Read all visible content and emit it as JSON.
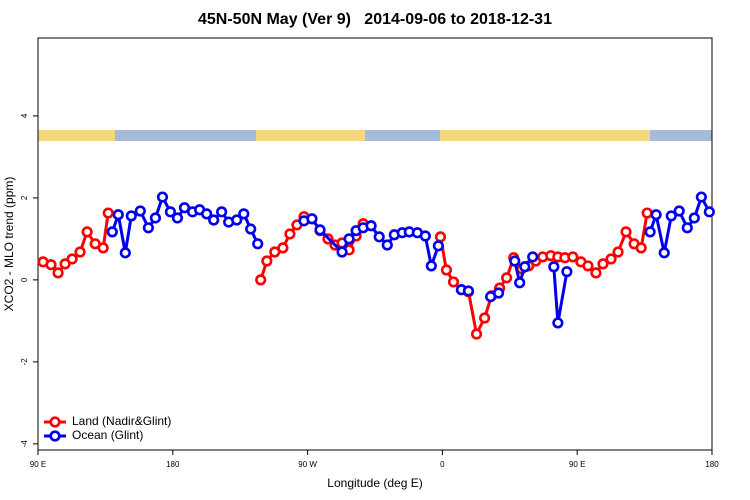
{
  "chart_data": {
    "type": "line",
    "title": "45N-50N May (Ver 9)   2014-09-06 to 2018-12-31",
    "xlabel": "Longitude (deg E)",
    "ylabel": "XCO2 - MLO trend (ppm)",
    "xlim": [
      90,
      540
    ],
    "ylim": [
      -4.15,
      5.9
    ],
    "xticks": [
      {
        "value": 90,
        "label": "90 E"
      },
      180,
      {
        "value": 270,
        "label": "90 W"
      },
      {
        "value": 360,
        "label": "0"
      },
      {
        "value": 450,
        "label": "90 E"
      },
      {
        "value": 540,
        "label": "180"
      }
    ],
    "yticks": [
      -4,
      -2,
      0,
      2,
      4
    ],
    "legend": "lower left",
    "series": [
      {
        "name": "Land (Nadir&Glint)",
        "color": "#ff0000",
        "x": [
          93.4,
          98.7,
          103.4,
          108.1,
          112.8,
          118.1,
          122.8,
          128.2,
          133.5,
          136.9,
          190,
          238.7,
          242.8,
          248.1,
          253.5,
          258.2,
          262.9,
          267.6,
          272.9,
          278.3,
          283.6,
          288.3,
          293,
          297.7,
          302.4,
          307.1,
          330,
          358.7,
          362.7,
          367.4,
          372.7,
          377.4,
          382.8,
          388.2,
          392.8,
          398.2,
          402.9,
          407.6,
          412.9,
          417.6,
          422.3,
          427,
          432.4,
          437.1,
          441.8,
          447.1,
          452.5,
          457.2,
          462.5,
          467.2,
          472.6,
          477.3,
          482.6,
          488,
          492.7,
          496.7
        ],
        "values": [
          0.44,
          0.37,
          0.17,
          0.39,
          0.51,
          0.68,
          1.17,
          0.88,
          0.78,
          1.63,
          null,
          0,
          0.46,
          0.68,
          0.78,
          1.12,
          1.34,
          1.54,
          1.49,
          1.2,
          1.0,
          0.85,
          0.9,
          0.73,
          1.07,
          1.37,
          null,
          1.05,
          0.24,
          -0.05,
          -0.24,
          -0.29,
          -1.32,
          -0.93,
          -0.39,
          -0.2,
          0.05,
          0.54,
          0.27,
          0.34,
          0.46,
          0.56,
          0.59,
          0.56,
          0.54,
          0.56,
          0.44,
          0.34,
          0.17,
          0.39,
          0.51,
          0.68,
          1.17,
          0.88,
          0.78,
          1.63
        ]
      },
      {
        "name": "Ocean (Glint)",
        "color": "#0000ee",
        "x": [
          139.6,
          143.6,
          148.3,
          152.3,
          158.3,
          163.7,
          168.4,
          173.1,
          178.4,
          183.1,
          187.8,
          193.2,
          197.9,
          202.6,
          207.3,
          212.6,
          217.3,
          222.7,
          227.4,
          232,
          236.7,
          250,
          267.6,
          272.9,
          278.3,
          293,
          297.7,
          302.4,
          307.1,
          312.4,
          317.8,
          323.2,
          327.9,
          333.2,
          337.9,
          343.3,
          348.6,
          352.6,
          357.3,
          365,
          372.7,
          377.4,
          385,
          392.2,
          397.5,
          403,
          408.3,
          411.6,
          415,
          420.3,
          428,
          434.4,
          437.1,
          443.1,
          470,
          498.7,
          502.7,
          508.1,
          512.8,
          518.1,
          523.5,
          528.2,
          532.9,
          538.2
        ],
        "values": [
          1.17,
          1.59,
          0.66,
          1.56,
          1.68,
          1.27,
          1.51,
          2.02,
          1.66,
          1.51,
          1.76,
          1.66,
          1.71,
          1.61,
          1.46,
          1.66,
          1.41,
          1.46,
          1.61,
          1.24,
          0.88,
          null,
          1.44,
          1.49,
          1.22,
          0.68,
          1.0,
          1.2,
          1.27,
          1.32,
          1.05,
          0.85,
          1.1,
          1.15,
          1.17,
          1.15,
          1.07,
          0.34,
          0.83,
          null,
          -0.24,
          -0.27,
          null,
          -0.41,
          -0.32,
          null,
          0.46,
          -0.07,
          0.32,
          0.56,
          null,
          0.32,
          -1.05,
          0.2,
          null,
          1.17,
          1.59,
          0.66,
          1.56,
          1.68,
          1.27,
          1.51,
          2.02,
          1.66
        ]
      }
    ]
  }
}
